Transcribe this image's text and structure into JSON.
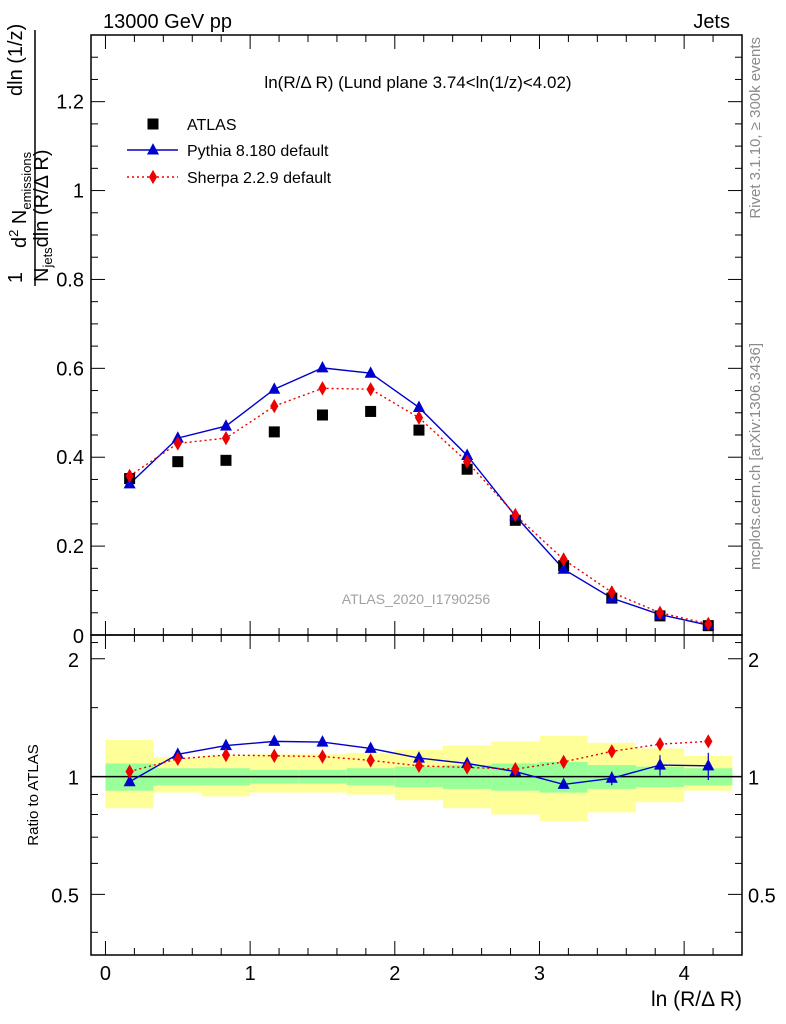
{
  "header": {
    "left": "13000 GeV pp",
    "right": "Jets"
  },
  "side_text": {
    "rivet": "Rivet 3.1.10, ≥ 300k events",
    "mcplots": "mcplots.cern.ch [arXiv:1306.3436]"
  },
  "watermark": "ATLAS_2020_I1790256",
  "colors": {
    "atlas": "#000000",
    "pythia": "#0000cc",
    "sherpa": "#ee0000",
    "band_inner": "#99ff99",
    "band_outer": "#ffff99"
  },
  "chart_data": [
    {
      "type": "scatter",
      "title": "ln(R/Δ R) (Lund plane 3.74<ln(1/z)<4.02)",
      "xlabel": "ln (R/Δ R)",
      "ylabel": "1/N_jets d²N_emissions / dln(R/Δ R) dln(1/z)",
      "xlim": [
        -0.1,
        4.4
      ],
      "ylim": [
        0,
        1.35
      ],
      "yticks": [
        "0.2",
        "0.4",
        "0.6",
        "0.8",
        "1",
        "1.2"
      ],
      "y_zero_label": "0",
      "legend_position": "top-left",
      "x": [
        0.167,
        0.5,
        0.833,
        1.167,
        1.5,
        1.833,
        2.167,
        2.5,
        2.833,
        3.167,
        3.5,
        3.833,
        4.167
      ],
      "series": [
        {
          "name": "ATLAS",
          "marker": "square",
          "values": [
            0.352,
            0.39,
            0.393,
            0.457,
            0.495,
            0.503,
            0.461,
            0.373,
            0.258,
            0.156,
            0.083,
            0.043,
            0.021
          ]
        },
        {
          "name": "Pythia 8.180 default",
          "marker": "triangle",
          "line": "solid",
          "values": [
            0.34,
            0.443,
            0.47,
            0.553,
            0.601,
            0.589,
            0.512,
            0.404,
            0.268,
            0.148,
            0.083,
            0.046,
            0.022
          ]
        },
        {
          "name": "Sherpa 2.2.9 default",
          "marker": "diamond",
          "line": "dotted",
          "values": [
            0.358,
            0.431,
            0.443,
            0.515,
            0.555,
            0.553,
            0.489,
            0.39,
            0.27,
            0.17,
            0.096,
            0.05,
            0.025
          ]
        }
      ]
    },
    {
      "type": "scatter",
      "ylabel": "Ratio to ATLAS",
      "xlabel": "ln (R/Δ R)",
      "xlim": [
        -0.1,
        4.4
      ],
      "xticks": [
        "0",
        "1",
        "2",
        "3",
        "4"
      ],
      "ylim": [
        0.35,
        2.3
      ],
      "yscale": "log",
      "yticks": [
        "0.5",
        "1",
        "2"
      ],
      "x": [
        0.167,
        0.5,
        0.833,
        1.167,
        1.5,
        1.833,
        2.167,
        2.5,
        2.833,
        3.167,
        3.5,
        3.833,
        4.167
      ],
      "bin_edges": [
        0,
        0.333,
        0.667,
        1.0,
        1.333,
        1.667,
        2.0,
        2.333,
        2.667,
        3.0,
        3.333,
        3.667,
        4.0,
        4.333
      ],
      "band_inner": {
        "lo": [
          0.92,
          0.95,
          0.95,
          0.96,
          0.96,
          0.95,
          0.94,
          0.93,
          0.92,
          0.91,
          0.93,
          0.94,
          0.95
        ],
        "hi": [
          1.08,
          1.05,
          1.05,
          1.04,
          1.04,
          1.05,
          1.06,
          1.07,
          1.08,
          1.09,
          1.07,
          1.06,
          1.05
        ]
      },
      "band_outer": {
        "lo": [
          0.83,
          0.91,
          0.89,
          0.91,
          0.91,
          0.9,
          0.87,
          0.83,
          0.8,
          0.77,
          0.81,
          0.86,
          0.92
        ],
        "hi": [
          1.24,
          1.12,
          1.13,
          1.14,
          1.14,
          1.15,
          1.17,
          1.2,
          1.23,
          1.27,
          1.22,
          1.18,
          1.13
        ]
      },
      "series": [
        {
          "name": "Pythia 8.180 default",
          "values": [
            0.97,
            1.14,
            1.2,
            1.23,
            1.225,
            1.18,
            1.115,
            1.08,
            1.03,
            0.955,
            0.99,
            1.07,
            1.065
          ]
        },
        {
          "name": "Sherpa 2.2.9 default",
          "values": [
            1.03,
            1.11,
            1.135,
            1.13,
            1.125,
            1.1,
            1.065,
            1.055,
            1.045,
            1.09,
            1.16,
            1.21,
            1.23
          ]
        }
      ]
    }
  ]
}
